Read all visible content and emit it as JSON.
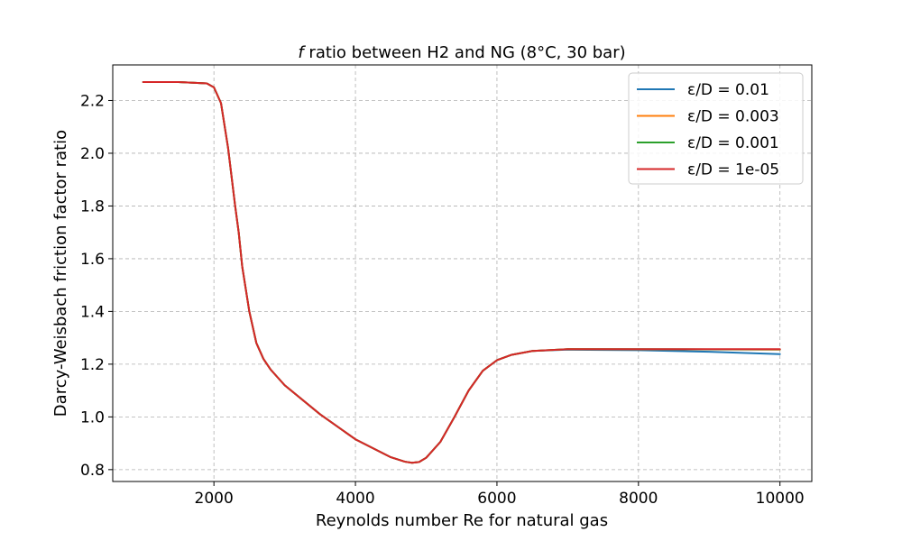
{
  "chart_data": {
    "type": "line",
    "title": {
      "symbol": "f",
      "text": " ratio between H2 and NG (8°C, 30 bar)"
    },
    "xlabel": "Reynolds number Re for natural gas",
    "ylabel": "Darcy-Weisbach friction factor ratio",
    "xlim": [
      570,
      10450
    ],
    "ylim": [
      0.755,
      2.335
    ],
    "xticks": [
      {
        "value": 2000,
        "label": "2000"
      },
      {
        "value": 4000,
        "label": "4000"
      },
      {
        "value": 6000,
        "label": "6000"
      },
      {
        "value": 8000,
        "label": "8000"
      },
      {
        "value": 10000,
        "label": "10000"
      }
    ],
    "yticks": [
      {
        "value": 0.8,
        "label": "0.8"
      },
      {
        "value": 1.0,
        "label": "1.0"
      },
      {
        "value": 1.2,
        "label": "1.2"
      },
      {
        "value": 1.4,
        "label": "1.4"
      },
      {
        "value": 1.6,
        "label": "1.6"
      },
      {
        "value": 1.8,
        "label": "1.8"
      },
      {
        "value": 2.0,
        "label": "2.0"
      },
      {
        "value": 2.2,
        "label": "2.2"
      }
    ],
    "grid": true,
    "legend_position": "top-right",
    "series": [
      {
        "name": "ε/D = 0.01",
        "color": "#1f77b4",
        "x": [
          1000,
          1500,
          1900,
          2000,
          2100,
          2200,
          2300,
          2350,
          2400,
          2500,
          2600,
          2700,
          2800,
          3000,
          3500,
          4000,
          4500,
          4700,
          4800,
          4900,
          5000,
          5200,
          5400,
          5600,
          5800,
          6000,
          6200,
          6500,
          7000,
          8000,
          9000,
          10000
        ],
        "y": [
          2.27,
          2.27,
          2.265,
          2.25,
          2.19,
          2.02,
          1.8,
          1.7,
          1.57,
          1.4,
          1.28,
          1.22,
          1.18,
          1.12,
          1.01,
          0.915,
          0.847,
          0.83,
          0.826,
          0.829,
          0.845,
          0.905,
          1.0,
          1.1,
          1.175,
          1.215,
          1.235,
          1.25,
          1.255,
          1.253,
          1.247,
          1.238
        ]
      },
      {
        "name": "ε/D = 0.003",
        "color": "#ff7f0e",
        "x": [
          1000,
          1500,
          1900,
          2000,
          2100,
          2200,
          2300,
          2350,
          2400,
          2500,
          2600,
          2700,
          2800,
          3000,
          3500,
          4000,
          4500,
          4700,
          4800,
          4900,
          5000,
          5200,
          5400,
          5600,
          5800,
          6000,
          6200,
          6500,
          7000,
          8000,
          9000,
          10000
        ],
        "y": [
          2.27,
          2.27,
          2.265,
          2.25,
          2.19,
          2.02,
          1.8,
          1.7,
          1.57,
          1.4,
          1.28,
          1.22,
          1.18,
          1.12,
          1.01,
          0.915,
          0.847,
          0.83,
          0.826,
          0.829,
          0.845,
          0.905,
          1.0,
          1.1,
          1.175,
          1.215,
          1.235,
          1.25,
          1.257,
          1.256,
          1.256,
          1.255
        ]
      },
      {
        "name": "ε/D = 0.001",
        "color": "#2ca02c",
        "x": [
          1000,
          1500,
          1900,
          2000,
          2100,
          2200,
          2300,
          2350,
          2400,
          2500,
          2600,
          2700,
          2800,
          3000,
          3500,
          4000,
          4500,
          4700,
          4800,
          4900,
          5000,
          5200,
          5400,
          5600,
          5800,
          6000,
          6200,
          6500,
          7000,
          8000,
          9000,
          10000
        ],
        "y": [
          2.27,
          2.27,
          2.265,
          2.25,
          2.19,
          2.02,
          1.8,
          1.7,
          1.57,
          1.4,
          1.28,
          1.22,
          1.18,
          1.12,
          1.01,
          0.915,
          0.847,
          0.83,
          0.826,
          0.829,
          0.845,
          0.905,
          1.0,
          1.1,
          1.175,
          1.215,
          1.235,
          1.25,
          1.257,
          1.257,
          1.256,
          1.256
        ]
      },
      {
        "name": "ε/D = 1e-05",
        "color": "#d62728",
        "x": [
          1000,
          1500,
          1900,
          2000,
          2100,
          2200,
          2300,
          2350,
          2400,
          2500,
          2600,
          2700,
          2800,
          3000,
          3500,
          4000,
          4500,
          4700,
          4800,
          4900,
          5000,
          5200,
          5400,
          5600,
          5800,
          6000,
          6200,
          6500,
          7000,
          8000,
          9000,
          10000
        ],
        "y": [
          2.27,
          2.27,
          2.265,
          2.25,
          2.19,
          2.02,
          1.8,
          1.7,
          1.57,
          1.4,
          1.28,
          1.22,
          1.18,
          1.12,
          1.01,
          0.915,
          0.847,
          0.83,
          0.826,
          0.829,
          0.845,
          0.905,
          1.0,
          1.1,
          1.175,
          1.215,
          1.235,
          1.25,
          1.257,
          1.257,
          1.257,
          1.257
        ]
      }
    ]
  }
}
